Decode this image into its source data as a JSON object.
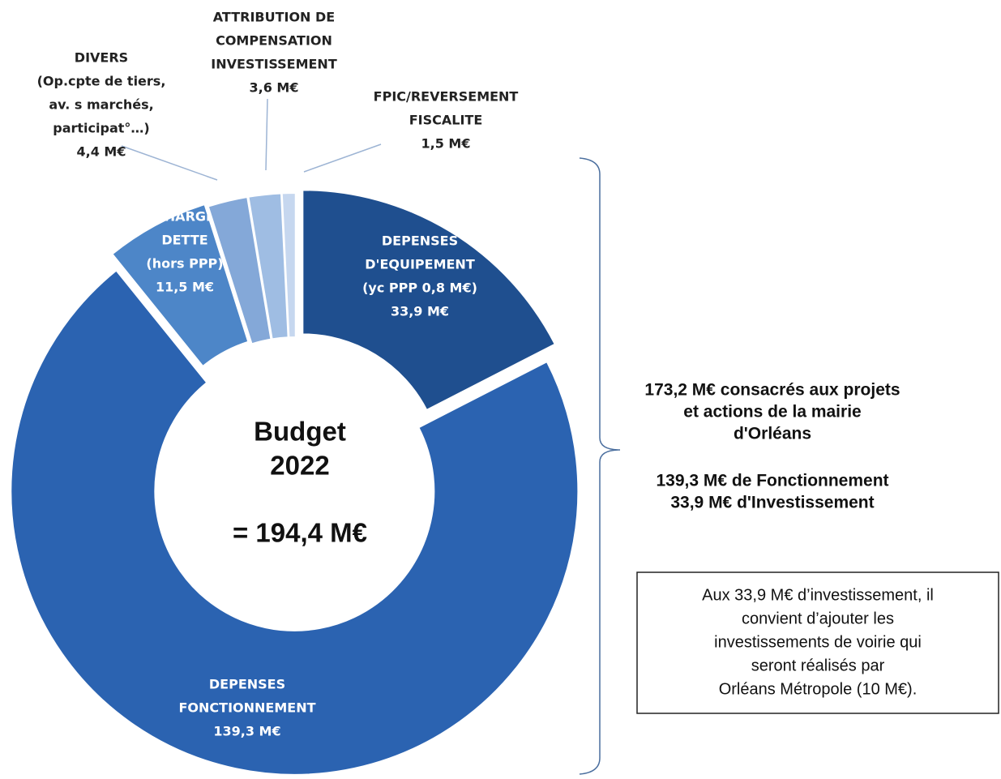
{
  "chart_data": {
    "type": "donut",
    "categories": [
      [
        "DEPENSES",
        "D'EQUIPEMENT",
        "(yc PPP 0,8 M€)"
      ],
      [
        "DEPENSES",
        "FONCTIONNEMENT"
      ],
      [
        "CHARGE",
        "DETTE",
        "(hors PPP)"
      ],
      [
        "DIVERS",
        "(Op.cpte de tiers,",
        "av. s marchés,",
        "participat°…)"
      ],
      [
        "ATTRIBUTION DE",
        "COMPENSATION",
        "INVESTISSEMENT"
      ],
      [
        "FPIC/REVERSEMENT",
        "FISCALITE"
      ]
    ],
    "values": [
      33.9,
      139.3,
      11.5,
      4.4,
      3.6,
      1.5
    ],
    "value_labels": [
      "33,9 M€",
      "139,3 M€",
      "11,5 M€",
      "4,4 M€",
      "3,6 M€",
      "1,5 M€"
    ],
    "colors": [
      "#1f4f8f",
      "#2b63b1",
      "#4d86c8",
      "#84a8d8",
      "#9fbde3",
      "#c6d7ef"
    ],
    "center_text": [
      "Budget",
      "2022",
      "= 194,4 M€"
    ],
    "summary": [
      "173,2 M€ consacrés aux projets",
      "et actions de la mairie",
      "d'Orléans"
    ],
    "breakdown": [
      "139,3 M€ de Fonctionnement",
      "33,9 M€ d'Investissement"
    ],
    "note": [
      "Aux 33,9 M€ d’investissement,  il",
      "convient d’ajouter les",
      "investissements de voirie qui",
      "seront réalisés par",
      "Orléans Métropole (10 M€)."
    ]
  }
}
